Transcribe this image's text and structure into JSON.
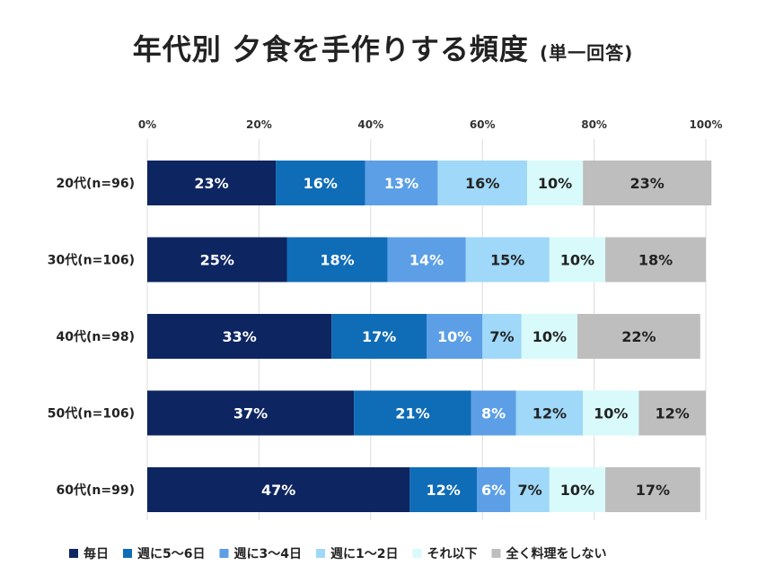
{
  "chart_data": {
    "type": "bar",
    "orientation": "horizontal",
    "stacked": true,
    "percent": true,
    "title": "年代別 夕食を手作りする頻度",
    "subtitle": "(単一回答)",
    "xlim": [
      0,
      100
    ],
    "x_ticks": [
      "0%",
      "20%",
      "40%",
      "60%",
      "80%",
      "100%"
    ],
    "x_tick_values": [
      0,
      20,
      40,
      60,
      80,
      100
    ],
    "grid": true,
    "legend_position": "bottom",
    "categories": [
      "20代(n=96)",
      "30代(n=106)",
      "40代(n=98)",
      "50代(n=106)",
      "60代(n=99)"
    ],
    "series": [
      {
        "name": "毎日",
        "color": "#0d2561",
        "label_color": "#ffffff",
        "values": [
          23,
          25,
          33,
          37,
          47
        ]
      },
      {
        "name": "週に5～6日",
        "color": "#0f6cb7",
        "label_color": "#ffffff",
        "values": [
          16,
          18,
          17,
          21,
          12
        ]
      },
      {
        "name": "週に3～4日",
        "color": "#5c9fe6",
        "label_color": "#ffffff",
        "values": [
          13,
          14,
          10,
          8,
          6
        ]
      },
      {
        "name": "週に1～2日",
        "color": "#9fd8f8",
        "label_color": "#222222",
        "values": [
          16,
          15,
          7,
          12,
          7
        ]
      },
      {
        "name": "それ以下",
        "color": "#d8fafa",
        "label_color": "#222222",
        "values": [
          10,
          10,
          10,
          10,
          10
        ]
      },
      {
        "name": "全く料理をしない",
        "color": "#bebebe",
        "label_color": "#222222",
        "values": [
          23,
          18,
          22,
          12,
          17
        ]
      }
    ]
  }
}
